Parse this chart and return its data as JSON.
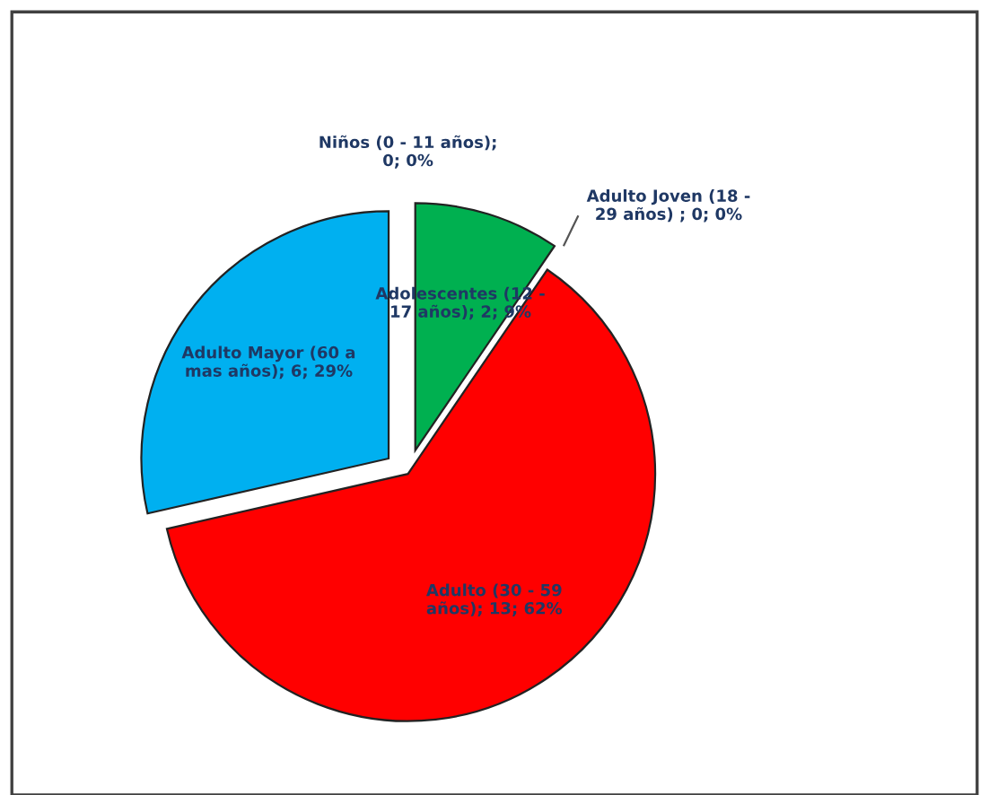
{
  "chart_data": {
    "type": "pie",
    "categories": [
      "Niños (0 - 11 años)",
      "Adolescentes (12 - 17 años)",
      "Adulto Joven (18 - 29 años) ",
      "Adulto (30 - 59 años)",
      "Adulto Mayor (60 a mas años)"
    ],
    "values": [
      0,
      2,
      0,
      13,
      6
    ],
    "colors": [
      "#4f81bd",
      "#00b050",
      "#c0504d",
      "#ff0000",
      "#00b0f0"
    ],
    "value_labels": [
      "; 0; 0%",
      "; 2; 9%",
      "; 0; 0%",
      "; 13; 62%",
      "; 6; 29%"
    ],
    "legend": false
  }
}
